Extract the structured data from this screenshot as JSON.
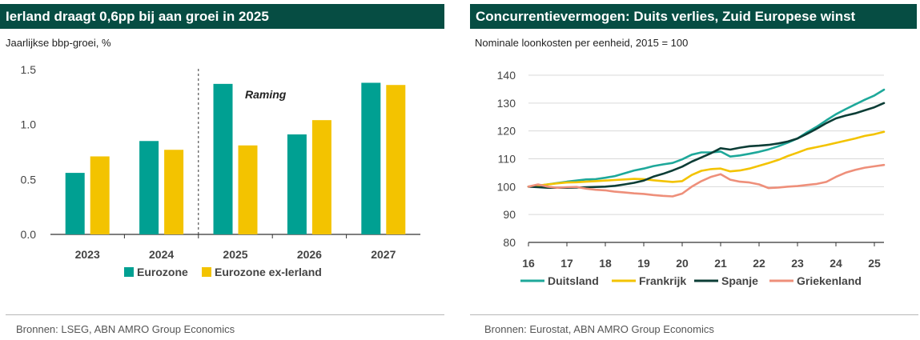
{
  "left": {
    "title": "Ierland draagt 0,6pp bij aan groei in 2025",
    "subtitle": "Jaarlijkse bbp-groei, %",
    "source": "Bronnen: LSEG, ABN AMRO Group Economics",
    "chart_data": {
      "type": "bar",
      "title": "Ierland draagt 0,6pp bij aan groei in 2025",
      "ylabel": "Jaarlijkse bbp-groei, %",
      "categories": [
        "2023",
        "2024",
        "2025",
        "2026",
        "2027"
      ],
      "ylim": [
        0,
        1.5
      ],
      "yticks": [
        "0.0",
        "0.5",
        "1.0",
        "1.5"
      ],
      "annotation": "Raming",
      "series": [
        {
          "name": "Eurozone",
          "color": "#00a092",
          "values": [
            0.56,
            0.85,
            1.37,
            0.91,
            1.38
          ]
        },
        {
          "name": "Eurozone ex-Ierland",
          "color": "#f3c300",
          "values": [
            0.71,
            0.77,
            0.81,
            1.04,
            1.36
          ]
        }
      ]
    }
  },
  "right": {
    "title": "Concurrentievermogen: Duits verlies, Zuid Europese winst",
    "subtitle": "Nominale loonkosten per eenheid, 2015 = 100",
    "source": "Bronnen: Eurostat, ABN AMRO Group Economics",
    "chart_data": {
      "type": "line",
      "title": "Concurrentievermogen: Duits verlies, Zuid Europese winst",
      "ylabel": "Nominale loonkosten per eenheid, 2015 = 100",
      "xlim": [
        16,
        25.25
      ],
      "ylim": [
        80,
        140
      ],
      "xticks": [
        "16",
        "17",
        "18",
        "19",
        "20",
        "21",
        "22",
        "23",
        "24",
        "25"
      ],
      "yticks": [
        "80",
        "90",
        "100",
        "110",
        "120",
        "130",
        "140"
      ],
      "x": [
        16,
        16.25,
        16.5,
        16.75,
        17,
        17.25,
        17.5,
        17.75,
        18,
        18.25,
        18.5,
        18.75,
        19,
        19.25,
        19.5,
        19.75,
        20,
        20.25,
        20.5,
        20.75,
        21,
        21.25,
        21.5,
        21.75,
        22,
        22.25,
        22.5,
        22.75,
        23,
        23.25,
        23.5,
        23.75,
        24,
        24.25,
        24.5,
        24.75,
        25,
        25.25
      ],
      "series": [
        {
          "name": "Duitsland",
          "color": "#1ea89a",
          "values": [
            100,
            100.3,
            100.8,
            101.3,
            101.8,
            102.2,
            102.6,
            102.7,
            103.2,
            103.8,
            104.8,
            105.8,
            106.5,
            107.4,
            108.0,
            108.5,
            109.8,
            111.5,
            112.3,
            112.3,
            112.6,
            110.8,
            111.2,
            111.8,
            112.5,
            113.4,
            114.5,
            115.8,
            117.3,
            119.5,
            121.5,
            123.8,
            126.0,
            127.8,
            129.5,
            131.2,
            132.7,
            134.8
          ]
        },
        {
          "name": "Frankrijk",
          "color": "#f3c300",
          "values": [
            100,
            100.4,
            100.8,
            101.2,
            101.5,
            101.6,
            101.8,
            102.0,
            102.2,
            102.4,
            102.6,
            102.8,
            102.7,
            102.3,
            102.0,
            101.7,
            102.0,
            104.2,
            105.7,
            106.3,
            106.5,
            105.5,
            105.8,
            106.5,
            107.5,
            108.5,
            109.6,
            111.0,
            112.2,
            113.5,
            114.2,
            114.9,
            115.7,
            116.5,
            117.3,
            118.2,
            118.8,
            119.7
          ]
        },
        {
          "name": "Spanje",
          "color": "#0c3d36",
          "values": [
            100,
            99.8,
            99.6,
            99.6,
            99.6,
            99.7,
            99.8,
            99.9,
            100.0,
            100.3,
            100.8,
            101.4,
            102.2,
            103.6,
            104.6,
            105.8,
            107.2,
            109.0,
            110.5,
            112.0,
            113.8,
            113.3,
            114.0,
            114.5,
            114.7,
            115.0,
            115.5,
            116.2,
            117.3,
            119.0,
            120.8,
            122.8,
            124.5,
            125.5,
            126.3,
            127.4,
            128.5,
            130.0
          ]
        },
        {
          "name": "Griekenland",
          "color": "#ee8f7a",
          "values": [
            100,
            100.8,
            100.0,
            99.6,
            99.8,
            99.9,
            99.3,
            98.9,
            98.7,
            98.2,
            97.9,
            97.6,
            97.4,
            97.0,
            96.7,
            96.5,
            97.5,
            100.0,
            102.0,
            103.5,
            104.5,
            102.5,
            101.8,
            101.5,
            100.8,
            99.5,
            99.7,
            100.0,
            100.2,
            100.6,
            101.0,
            101.7,
            103.5,
            105.0,
            106.0,
            106.8,
            107.3,
            107.8
          ]
        }
      ]
    }
  }
}
